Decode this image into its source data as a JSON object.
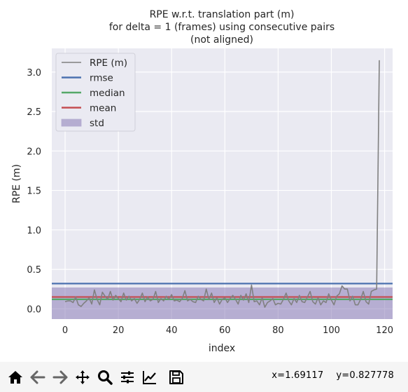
{
  "chart_data": {
    "type": "line",
    "title_lines": [
      "RPE w.r.t. translation part (m)",
      "for delta = 1 (frames) using consecutive pairs",
      "(not aligned)"
    ],
    "xlabel": "index",
    "ylabel": "RPE (m)",
    "xlim": [
      -5,
      123
    ],
    "ylim": [
      -0.13,
      3.3
    ],
    "xticks": [
      "0",
      "20",
      "40",
      "60",
      "80",
      "100",
      "120"
    ],
    "yticks": [
      "0.0",
      "0.5",
      "1.0",
      "1.5",
      "2.0",
      "2.5",
      "3.0"
    ],
    "grid": true,
    "legend": {
      "position": "top-left",
      "entries": [
        {
          "label": "RPE (m)",
          "color": "#808080",
          "kind": "line"
        },
        {
          "label": "rmse",
          "color": "#4c72b0",
          "kind": "line"
        },
        {
          "label": "median",
          "color": "#55a868",
          "kind": "line"
        },
        {
          "label": "mean",
          "color": "#c44e52",
          "kind": "line"
        },
        {
          "label": "std",
          "color": "#8172b2",
          "kind": "patch"
        }
      ]
    },
    "stats": {
      "rmse": 0.32,
      "median": 0.12,
      "mean": 0.15,
      "std_low": -0.13,
      "std_high": 0.27
    },
    "series": [
      {
        "name": "RPE (m)",
        "x": [
          0,
          1,
          2,
          3,
          4,
          5,
          6,
          7,
          8,
          9,
          10,
          11,
          12,
          13,
          14,
          15,
          16,
          17,
          18,
          19,
          20,
          21,
          22,
          23,
          24,
          25,
          26,
          27,
          28,
          29,
          30,
          31,
          32,
          33,
          34,
          35,
          36,
          37,
          38,
          39,
          40,
          41,
          42,
          43,
          44,
          45,
          46,
          47,
          48,
          49,
          50,
          51,
          52,
          53,
          54,
          55,
          56,
          57,
          58,
          59,
          60,
          61,
          62,
          63,
          64,
          65,
          66,
          67,
          68,
          69,
          70,
          71,
          72,
          73,
          74,
          75,
          76,
          77,
          78,
          79,
          80,
          81,
          82,
          83,
          84,
          85,
          86,
          87,
          88,
          89,
          90,
          91,
          92,
          93,
          94,
          95,
          96,
          97,
          98,
          99,
          100,
          101,
          102,
          103,
          104,
          105,
          106,
          107,
          108,
          109,
          110,
          111,
          112,
          113,
          114,
          115,
          116,
          117,
          118
        ],
        "y": [
          0.09,
          0.1,
          0.1,
          0.08,
          0.15,
          0.05,
          0.03,
          0.07,
          0.1,
          0.14,
          0.06,
          0.24,
          0.12,
          0.05,
          0.21,
          0.16,
          0.12,
          0.22,
          0.11,
          0.17,
          0.13,
          0.09,
          0.2,
          0.11,
          0.16,
          0.1,
          0.13,
          0.07,
          0.12,
          0.2,
          0.09,
          0.15,
          0.1,
          0.12,
          0.22,
          0.08,
          0.13,
          0.1,
          0.16,
          0.12,
          0.18,
          0.1,
          0.11,
          0.09,
          0.13,
          0.23,
          0.1,
          0.12,
          0.09,
          0.08,
          0.16,
          0.12,
          0.1,
          0.25,
          0.12,
          0.2,
          0.08,
          0.14,
          0.06,
          0.12,
          0.14,
          0.08,
          0.13,
          0.17,
          0.12,
          0.06,
          0.17,
          0.11,
          0.19,
          0.08,
          0.3,
          0.09,
          0.1,
          0.05,
          0.14,
          0.02,
          0.08,
          0.1,
          0.13,
          0.05,
          0.07,
          0.06,
          0.12,
          0.2,
          0.1,
          0.05,
          0.13,
          0.08,
          0.17,
          0.09,
          0.08,
          0.15,
          0.22,
          0.09,
          0.06,
          0.14,
          0.05,
          0.1,
          0.08,
          0.19,
          0.11,
          0.05,
          0.16,
          0.19,
          0.29,
          0.25,
          0.25,
          0.1,
          0.16,
          0.05,
          0.05,
          0.12,
          0.22,
          0.09,
          0.06,
          0.22,
          0.24,
          0.25,
          3.15
        ]
      }
    ]
  },
  "toolbar": {
    "icons": [
      "home-icon",
      "back-arrow-icon",
      "forward-arrow-icon",
      "pan-icon",
      "zoom-icon",
      "configure-subplots-icon",
      "edit-axes-icon",
      "save-icon"
    ]
  },
  "status": {
    "x_readout": "x=1.69117",
    "y_readout": "y=0.827778"
  }
}
